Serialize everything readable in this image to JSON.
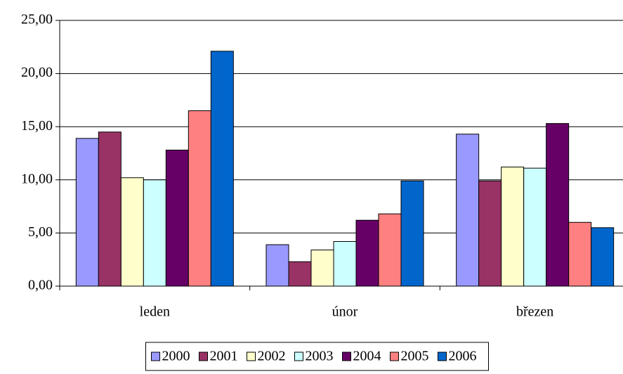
{
  "chart_data": {
    "type": "bar",
    "categories": [
      "leden",
      "únor",
      "březen"
    ],
    "series": [
      {
        "name": "2000",
        "color": "#9999ff",
        "values": [
          13.9,
          3.9,
          14.3
        ]
      },
      {
        "name": "2001",
        "color": "#993366",
        "values": [
          14.5,
          2.3,
          9.9
        ]
      },
      {
        "name": "2002",
        "color": "#ffffcc",
        "values": [
          10.2,
          3.4,
          11.2
        ]
      },
      {
        "name": "2003",
        "color": "#ccffff",
        "values": [
          10.0,
          4.2,
          11.1
        ]
      },
      {
        "name": "2004",
        "color": "#660066",
        "values": [
          12.8,
          6.2,
          15.3
        ]
      },
      {
        "name": "2005",
        "color": "#ff8080",
        "values": [
          16.5,
          6.8,
          6.0
        ]
      },
      {
        "name": "2006",
        "color": "#0066cc",
        "values": [
          22.1,
          9.9,
          5.5
        ]
      }
    ],
    "ylim": [
      0,
      25
    ],
    "yticks": [
      {
        "value": 0,
        "label": "0,00"
      },
      {
        "value": 5,
        "label": "5,00"
      },
      {
        "value": 10,
        "label": "10,00"
      },
      {
        "value": 15,
        "label": "15,00"
      },
      {
        "value": 20,
        "label": "20,00"
      },
      {
        "value": 25,
        "label": "25,00"
      }
    ],
    "grid": true,
    "legend": "bottom"
  }
}
